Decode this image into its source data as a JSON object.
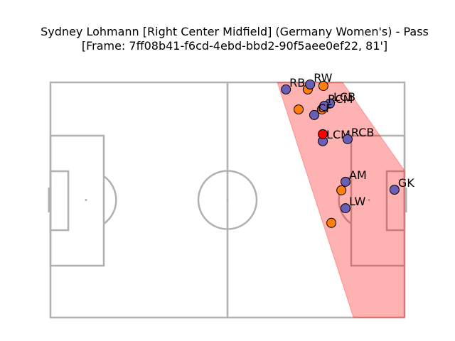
{
  "chart_data": {
    "type": "scatter",
    "title": "Sydney Lohmann [Right Center Midfield] (Germany Women's) - Pass",
    "subtitle": "[Frame: 7ff08b41-f6cd-4ebd-bbd2-90f5aee0ef22, 81']",
    "xlim": [
      0,
      120
    ],
    "ylim": [
      0,
      80
    ],
    "y_inverted": true,
    "visible_area": {
      "color": "#ff0000",
      "x": [
        76.9,
        99.0,
        120,
        120,
        102.7
      ],
      "y": [
        0,
        0,
        30.0,
        80,
        80
      ]
    },
    "series": [
      {
        "color": "#ff7f0e",
        "x": [
          87.2,
          92.5,
          84.1,
          92.0,
          98.6,
          95.2
        ],
        "y": [
          2.4,
          1.2,
          9.2,
          9.2,
          36.7,
          47.8
        ]
      },
      {
        "color": "#6b5fb5",
        "labels": [
          "RB",
          "RW",
          "LCB",
          "RCM",
          "CF",
          "LCM",
          "RCB",
          "AM",
          "LW",
          "GK"
        ],
        "x": [
          79.8,
          88.0,
          94.7,
          92.8,
          89.4,
          92.3,
          100.7,
          100.0,
          100.0,
          116.6
        ],
        "y": [
          2.4,
          0.7,
          7.2,
          8.0,
          11.1,
          20.0,
          19.3,
          33.8,
          42.8,
          36.5
        ]
      },
      {
        "color": "#ff0000",
        "x": [
          92.3
        ],
        "y": [
          17.6
        ]
      }
    ]
  }
}
